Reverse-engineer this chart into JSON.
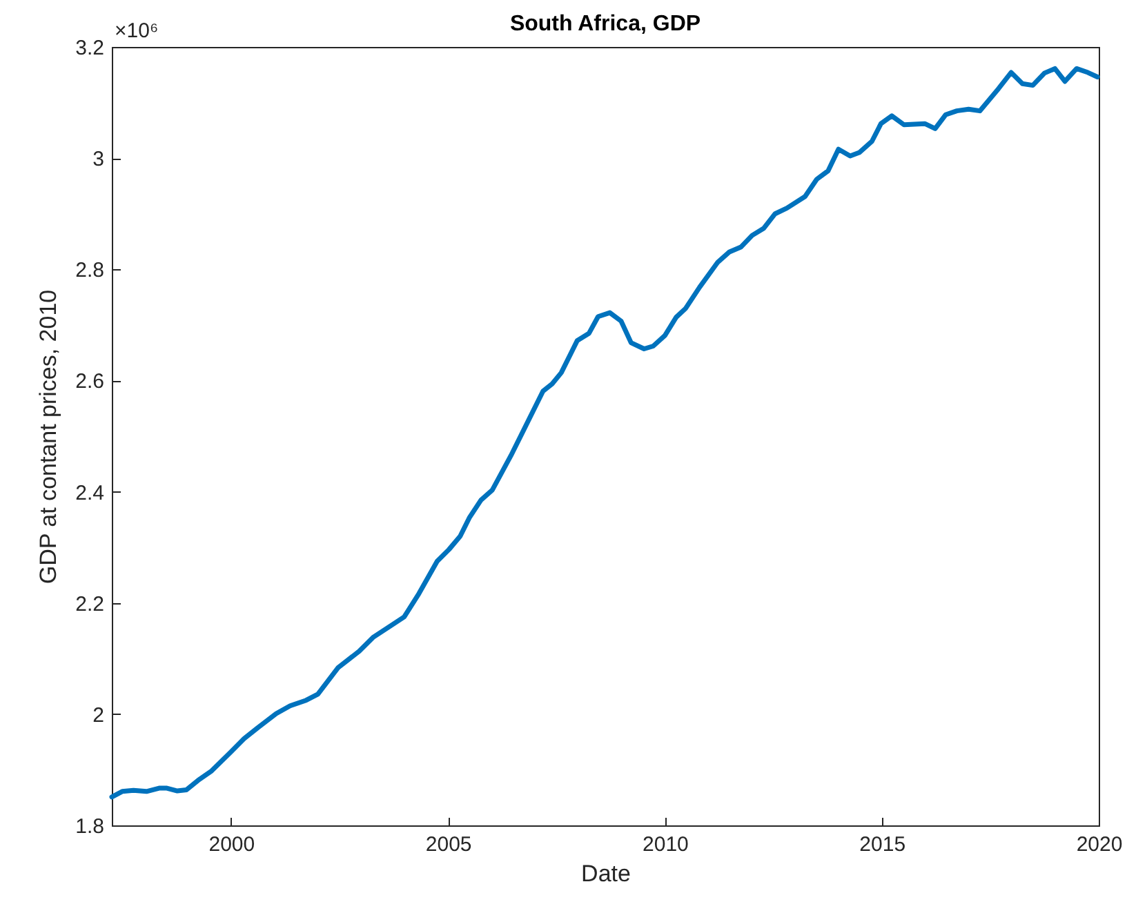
{
  "chart_data": {
    "type": "line",
    "title": "South Africa, GDP",
    "xlabel": "Date",
    "ylabel": "GDP at contant prices, 2010",
    "annotations": [
      "×10⁶"
    ],
    "xlim": [
      1997.25,
      2020
    ],
    "xticks": [
      2000,
      2005,
      2010,
      2015,
      2020
    ],
    "ylim": [
      1.8,
      3.2
    ],
    "yticks": [
      1.8,
      2,
      2.2,
      2.4,
      2.6,
      2.8,
      3,
      3.2
    ],
    "x": [
      1997.25,
      1997.49,
      1997.75,
      1998.05,
      1998.34,
      1998.52,
      1998.76,
      1998.97,
      1999.24,
      1999.55,
      1999.98,
      2000.3,
      2000.62,
      2001.04,
      2001.36,
      2001.73,
      2002.0,
      2002.47,
      2002.95,
      2003.27,
      2003.64,
      2003.99,
      2004.33,
      2004.75,
      2005.02,
      2005.28,
      2005.49,
      2005.76,
      2006.02,
      2006.45,
      2007.19,
      2007.4,
      2007.61,
      2007.98,
      2008.25,
      2008.46,
      2008.73,
      2008.99,
      2009.22,
      2009.52,
      2009.73,
      2010.0,
      2010.26,
      2010.48,
      2010.8,
      2011.22,
      2011.48,
      2011.75,
      2012.01,
      2012.28,
      2012.54,
      2012.81,
      2013.23,
      2013.5,
      2013.76,
      2014.0,
      2014.27,
      2014.48,
      2014.77,
      2014.98,
      2015.23,
      2015.51,
      2015.99,
      2016.23,
      2016.47,
      2016.73,
      2017.0,
      2017.26,
      2017.69,
      2017.98,
      2018.24,
      2018.48,
      2018.75,
      2018.99,
      2019.22,
      2019.49,
      2019.75,
      2019.97
    ],
    "series": [
      {
        "color": "#0072bd",
        "values": [
          1.851,
          1.861,
          1.863,
          1.861,
          1.867,
          1.867,
          1.862,
          1.864,
          1.881,
          1.898,
          1.931,
          1.956,
          1.976,
          2.001,
          2.015,
          2.025,
          2.036,
          2.084,
          2.113,
          2.138,
          2.157,
          2.175,
          2.217,
          2.275,
          2.296,
          2.32,
          2.353,
          2.385,
          2.403,
          2.465,
          2.581,
          2.594,
          2.614,
          2.672,
          2.685,
          2.715,
          2.722,
          2.707,
          2.668,
          2.657,
          2.662,
          2.681,
          2.714,
          2.73,
          2.768,
          2.813,
          2.831,
          2.84,
          2.861,
          2.874,
          2.9,
          2.91,
          2.931,
          2.962,
          2.977,
          3.016,
          3.004,
          3.01,
          3.03,
          3.062,
          3.076,
          3.06,
          3.062,
          3.053,
          3.078,
          3.085,
          3.088,
          3.085,
          3.125,
          3.154,
          3.134,
          3.131,
          3.153,
          3.161,
          3.138,
          3.161,
          3.154,
          3.146
        ]
      }
    ]
  }
}
